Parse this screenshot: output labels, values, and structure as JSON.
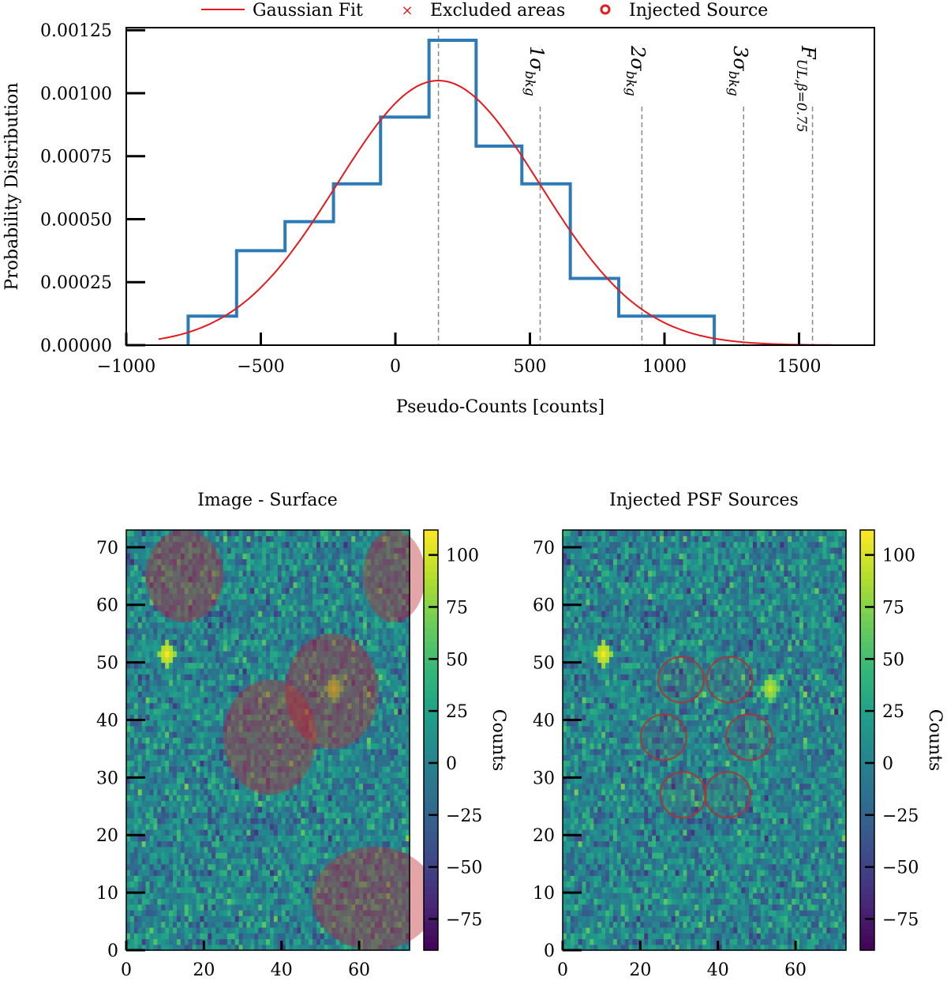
{
  "chart_data": [
    {
      "type": "bar",
      "subtype": "step-histogram-with-gaussian-fit",
      "title": "",
      "xlabel": "Pseudo-Counts [counts]",
      "ylabel": "Probability Distribution",
      "xlim": [
        -1000,
        1780
      ],
      "ylim": [
        0,
        0.00126
      ],
      "xticks": [
        -1000,
        -500,
        0,
        500,
        1000,
        1500
      ],
      "xtick_labels": [
        "−1000",
        "−500",
        "0",
        "500",
        "1000",
        "1500"
      ],
      "yticks": [
        0,
        0.00025,
        0.0005,
        0.00075,
        0.001,
        0.00125
      ],
      "ytick_labels": [
        "0.00000",
        "0.00025",
        "0.00050",
        "0.00075",
        "0.00100",
        "0.00125"
      ],
      "bin_edges": [
        -770,
        -590,
        -410,
        -230,
        -55,
        125,
        300,
        470,
        650,
        830,
        1005,
        1185
      ],
      "bin_values": [
        0.000115,
        0.000375,
        0.00049,
        0.00064,
        0.000905,
        0.00121,
        0.00079,
        0.00064,
        0.000265,
        0.000115,
        0.000115
      ],
      "series": [
        {
          "name": "Gaussian Fit",
          "mean": 160,
          "sigma": 378,
          "amplitude": 0.00105,
          "x_range": [
            -880,
            1620
          ],
          "color": "#e41a1c"
        }
      ],
      "legend": [
        {
          "label": "Gaussian Fit",
          "marker": "line",
          "color": "#e41a1c"
        },
        {
          "label": "Excluded areas",
          "marker": "x",
          "color": "#e41a1c"
        },
        {
          "label": "Injected Source",
          "marker": "circle",
          "color": "#e41a1c"
        }
      ],
      "legend_position": "top-center",
      "vertical_lines": [
        {
          "x": 160,
          "label": ""
        },
        {
          "x": 538,
          "label": "1σbkg"
        },
        {
          "x": 916,
          "label": "2σbkg"
        },
        {
          "x": 1294,
          "label": "3σbkg"
        },
        {
          "x": 1550,
          "label": "FUL,β=0.75"
        }
      ],
      "annotation_parts": {
        "one_sigma": {
          "num": "1",
          "greek": "σ",
          "sub": "bkg"
        },
        "two_sigma": {
          "num": "2",
          "greek": "σ",
          "sub": "bkg"
        },
        "three_sigma": {
          "num": "3",
          "greek": "σ",
          "sub": "bkg"
        },
        "f_ul": {
          "main": "F",
          "sub": "UL,β=0.75"
        }
      },
      "colors": {
        "hist": "#2c7bb6",
        "fit": "#e41a1c",
        "vline": "#888888"
      }
    },
    {
      "type": "heatmap",
      "title": "Image - Surface",
      "xlim": [
        0,
        73
      ],
      "ylim": [
        0,
        73
      ],
      "xticks": [
        0,
        20,
        40,
        60
      ],
      "yticks": [
        0,
        10,
        20,
        30,
        40,
        50,
        60,
        70
      ],
      "excluded_regions": [
        {
          "cx": 15,
          "cy": 65,
          "rx": 10,
          "ry": 8
        },
        {
          "cx": 69,
          "cy": 65,
          "rx": 8,
          "ry": 8
        },
        {
          "cx": 53,
          "cy": 45,
          "rx": 12,
          "ry": 10
        },
        {
          "cx": 37,
          "cy": 37,
          "rx": 12,
          "ry": 10
        },
        {
          "cx": 64,
          "cy": 9,
          "rx": 16,
          "ry": 9
        }
      ],
      "hotspots": [
        {
          "x": 53,
          "y": 45,
          "peak": 95
        },
        {
          "x": 10,
          "y": 51,
          "peak": 110
        }
      ],
      "colorbar": {
        "label": "Counts",
        "range": [
          -90,
          112
        ],
        "ticks": [
          100,
          75,
          50,
          25,
          0,
          -25,
          -50,
          -75
        ],
        "tick_labels": [
          "100",
          "75",
          "50",
          "25",
          "0",
          "−25",
          "−50",
          "−75"
        ]
      },
      "colormap": "viridis"
    },
    {
      "type": "heatmap",
      "title": "Injected PSF Sources",
      "xlim": [
        0,
        73
      ],
      "ylim": [
        0,
        73
      ],
      "xticks": [
        0,
        20,
        40,
        60
      ],
      "yticks": [
        0,
        10,
        20,
        30,
        40,
        50,
        60,
        70
      ],
      "injected_sources": [
        {
          "x": 30.5,
          "y": 47,
          "r": 6
        },
        {
          "x": 43,
          "y": 47,
          "r": 6
        },
        {
          "x": 26,
          "y": 37,
          "r": 6
        },
        {
          "x": 48,
          "y": 37,
          "r": 6
        },
        {
          "x": 31,
          "y": 27,
          "r": 6
        },
        {
          "x": 42.5,
          "y": 27,
          "r": 6
        }
      ],
      "hotspots": [
        {
          "x": 53,
          "y": 45,
          "peak": 95
        },
        {
          "x": 10,
          "y": 51,
          "peak": 110
        }
      ],
      "colorbar": {
        "label": "Counts",
        "range": [
          -90,
          112
        ],
        "ticks": [
          100,
          75,
          50,
          25,
          0,
          -25,
          -50,
          -75
        ],
        "tick_labels": [
          "100",
          "75",
          "50",
          "25",
          "0",
          "−25",
          "−50",
          "−75"
        ]
      },
      "colormap": "viridis"
    }
  ]
}
